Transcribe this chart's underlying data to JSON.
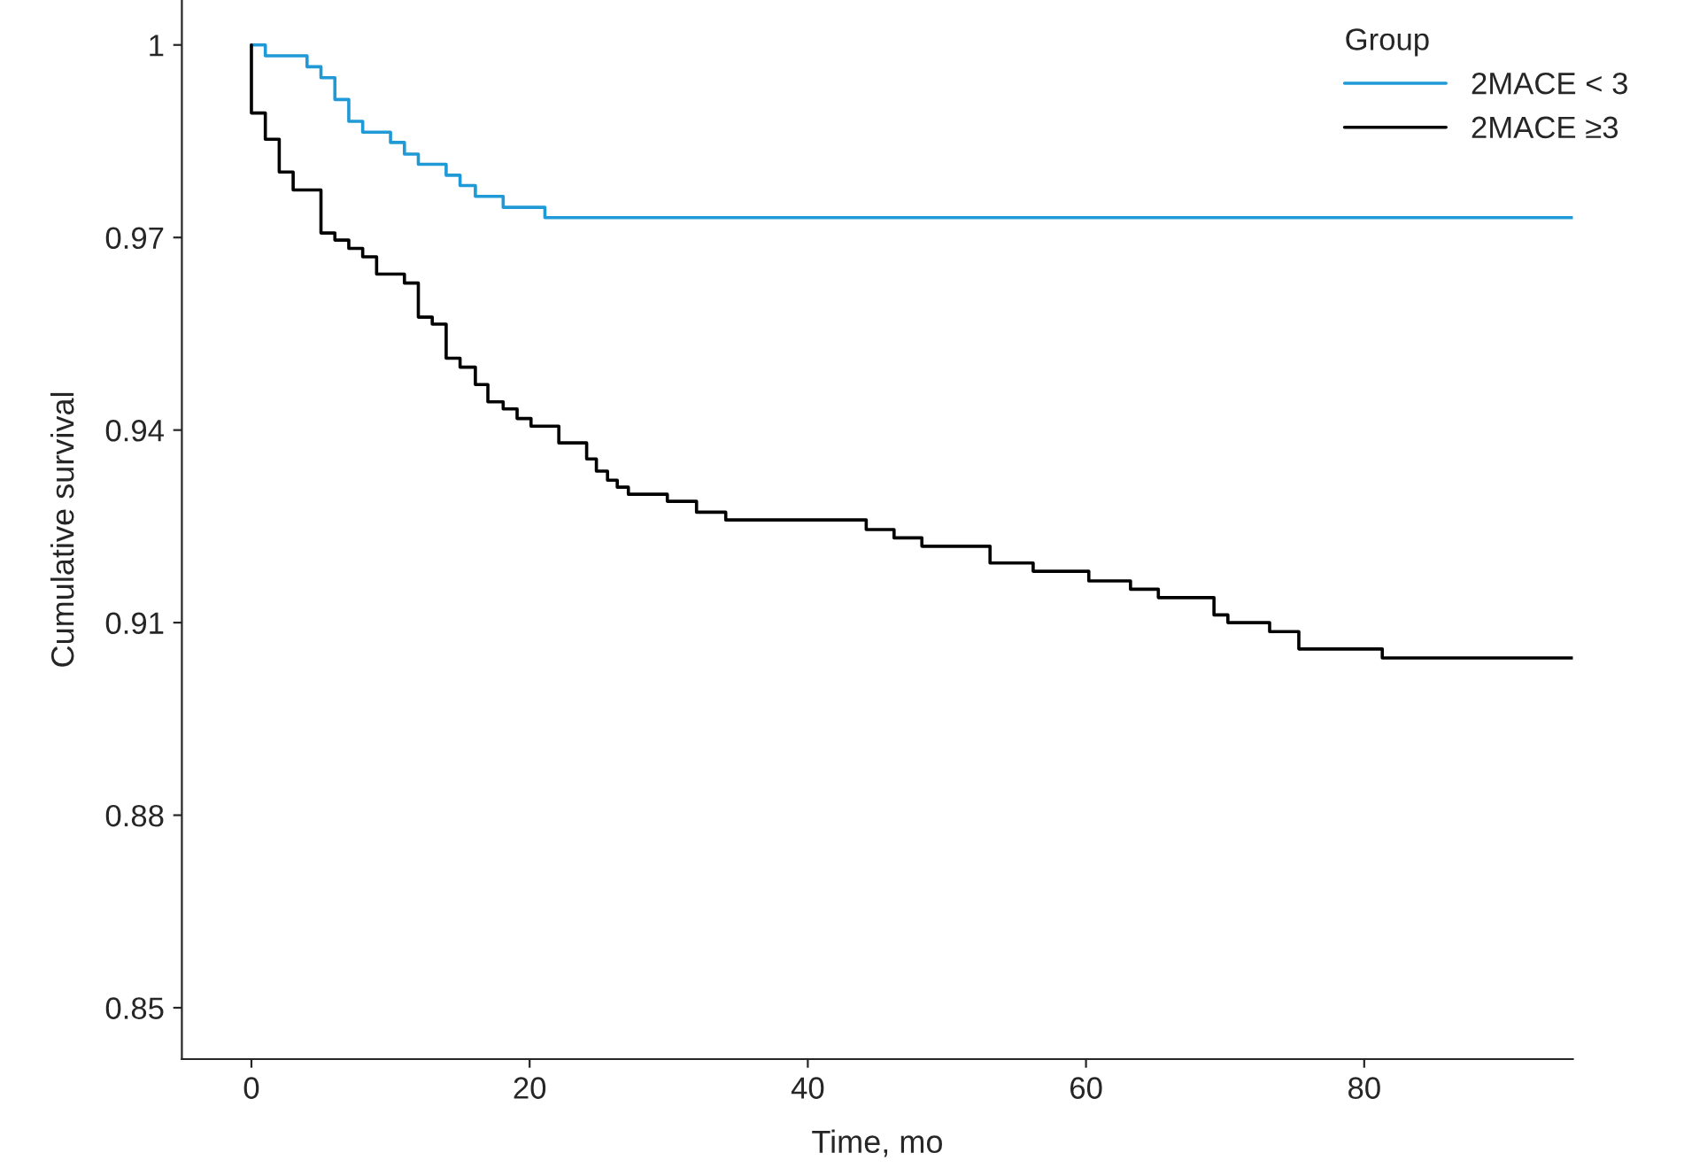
{
  "chart_data": {
    "type": "step",
    "xlabel": "Time, mo",
    "ylabel": "Cumulative survival",
    "legend_title": "Group",
    "legend": "top right",
    "grid": false,
    "marker": "none",
    "line_style": "solid",
    "xlim": [
      -5,
      95
    ],
    "xticks": [
      0,
      20,
      40,
      60,
      80
    ],
    "ylim": [
      0.842,
      1.007
    ],
    "yticks": [
      0.85,
      0.88,
      0.91,
      0.94,
      0.97,
      1
    ],
    "series": [
      {
        "name": "2MACE < 3",
        "color": "#1f9ad6",
        "x": [
          0,
          1,
          4,
          5,
          6,
          7,
          8,
          10,
          11,
          12,
          14,
          15,
          16.1,
          18.1,
          21.1,
          95
        ],
        "values": [
          1.0,
          0.9983,
          0.9966,
          0.9949,
          0.9915,
          0.9881,
          0.9864,
          0.9848,
          0.983,
          0.9814,
          0.9797,
          0.9781,
          0.9764,
          0.9747,
          0.9731,
          0.9731
        ]
      },
      {
        "name": "2MACE ≥3",
        "color": "#000000",
        "x": [
          0,
          0,
          1,
          2,
          3,
          5,
          6,
          7,
          8,
          9,
          11,
          12,
          13,
          14,
          15,
          16.1,
          17,
          18.1,
          19.1,
          20.1,
          22.1,
          24.1,
          24.8,
          25.6,
          26.3,
          27.1,
          29.9,
          32,
          34.1,
          44.2,
          46.2,
          48.2,
          53.1,
          56.2,
          60.2,
          63.2,
          65.2,
          69.2,
          70.2,
          73.2,
          75.3,
          81.3,
          95
        ],
        "values": [
          1.0,
          0.9894,
          0.9853,
          0.9802,
          0.9774,
          0.9707,
          0.9696,
          0.9683,
          0.967,
          0.9643,
          0.9629,
          0.9576,
          0.9565,
          0.9512,
          0.9498,
          0.9471,
          0.9444,
          0.9433,
          0.9418,
          0.9406,
          0.938,
          0.9355,
          0.9336,
          0.9322,
          0.9311,
          0.93,
          0.9289,
          0.9272,
          0.926,
          0.9245,
          0.9232,
          0.9219,
          0.9193,
          0.918,
          0.9165,
          0.9152,
          0.9139,
          0.9112,
          0.91,
          0.9086,
          0.9059,
          0.9045,
          0.9045
        ]
      }
    ]
  }
}
